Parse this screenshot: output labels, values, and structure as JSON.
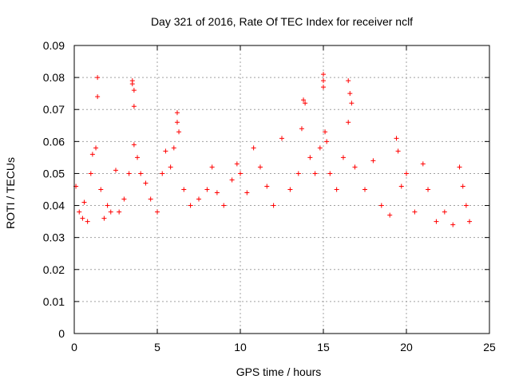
{
  "chart_data": {
    "type": "scatter",
    "title": "Day 321 of 2016, Rate Of TEC Index for receiver nclf",
    "xlabel": "GPS time / hours",
    "ylabel": "ROTI / TECUs",
    "xlim": [
      0,
      25
    ],
    "ylim": [
      0,
      0.09
    ],
    "x_ticks": [
      0,
      5,
      10,
      15,
      20,
      25
    ],
    "y_ticks": [
      0,
      0.01,
      0.02,
      0.03,
      0.04,
      0.05,
      0.06,
      0.07,
      0.08,
      0.09
    ],
    "x_tick_labels": [
      "0",
      "5",
      "10",
      "15",
      "20",
      "25"
    ],
    "y_tick_labels": [
      "0",
      "0.01",
      "0.02",
      "0.03",
      "0.04",
      "0.05",
      "0.06",
      "0.07",
      "0.08",
      "0.09"
    ],
    "grid": true,
    "marker": "+",
    "marker_color": "#ff0000",
    "series": [
      {
        "name": "ROTI",
        "points": [
          [
            0.1,
            0.046
          ],
          [
            0.3,
            0.038
          ],
          [
            0.5,
            0.036
          ],
          [
            0.6,
            0.041
          ],
          [
            0.8,
            0.035
          ],
          [
            1.0,
            0.05
          ],
          [
            1.1,
            0.056
          ],
          [
            1.3,
            0.058
          ],
          [
            1.4,
            0.08
          ],
          [
            1.4,
            0.074
          ],
          [
            1.6,
            0.045
          ],
          [
            1.8,
            0.036
          ],
          [
            2.0,
            0.04
          ],
          [
            2.2,
            0.038
          ],
          [
            2.5,
            0.051
          ],
          [
            2.7,
            0.038
          ],
          [
            3.0,
            0.042
          ],
          [
            3.3,
            0.05
          ],
          [
            3.5,
            0.079
          ],
          [
            3.5,
            0.078
          ],
          [
            3.6,
            0.076
          ],
          [
            3.6,
            0.071
          ],
          [
            3.6,
            0.059
          ],
          [
            3.8,
            0.055
          ],
          [
            4.0,
            0.05
          ],
          [
            4.3,
            0.047
          ],
          [
            4.6,
            0.042
          ],
          [
            5.0,
            0.038
          ],
          [
            5.3,
            0.05
          ],
          [
            5.5,
            0.057
          ],
          [
            5.8,
            0.052
          ],
          [
            6.0,
            0.058
          ],
          [
            6.2,
            0.069
          ],
          [
            6.2,
            0.066
          ],
          [
            6.3,
            0.063
          ],
          [
            6.6,
            0.045
          ],
          [
            7.0,
            0.04
          ],
          [
            7.5,
            0.042
          ],
          [
            8.0,
            0.045
          ],
          [
            8.3,
            0.052
          ],
          [
            8.6,
            0.044
          ],
          [
            9.0,
            0.04
          ],
          [
            9.5,
            0.048
          ],
          [
            9.8,
            0.053
          ],
          [
            10.0,
            0.05
          ],
          [
            10.4,
            0.044
          ],
          [
            10.8,
            0.058
          ],
          [
            11.2,
            0.052
          ],
          [
            11.6,
            0.046
          ],
          [
            12.0,
            0.04
          ],
          [
            12.5,
            0.061
          ],
          [
            13.0,
            0.045
          ],
          [
            13.5,
            0.05
          ],
          [
            13.7,
            0.064
          ],
          [
            13.8,
            0.073
          ],
          [
            13.9,
            0.072
          ],
          [
            14.2,
            0.055
          ],
          [
            14.5,
            0.05
          ],
          [
            14.8,
            0.058
          ],
          [
            15.0,
            0.081
          ],
          [
            15.0,
            0.079
          ],
          [
            15.0,
            0.077
          ],
          [
            15.1,
            0.063
          ],
          [
            15.2,
            0.06
          ],
          [
            15.4,
            0.05
          ],
          [
            15.8,
            0.045
          ],
          [
            16.2,
            0.055
          ],
          [
            16.5,
            0.079
          ],
          [
            16.6,
            0.075
          ],
          [
            16.7,
            0.072
          ],
          [
            16.5,
            0.066
          ],
          [
            16.9,
            0.052
          ],
          [
            17.5,
            0.045
          ],
          [
            18.0,
            0.054
          ],
          [
            18.5,
            0.04
          ],
          [
            19.0,
            0.037
          ],
          [
            19.4,
            0.061
          ],
          [
            19.5,
            0.057
          ],
          [
            19.7,
            0.046
          ],
          [
            20.0,
            0.05
          ],
          [
            20.5,
            0.038
          ],
          [
            21.0,
            0.053
          ],
          [
            21.3,
            0.045
          ],
          [
            21.8,
            0.035
          ],
          [
            22.3,
            0.038
          ],
          [
            22.8,
            0.034
          ],
          [
            23.2,
            0.052
          ],
          [
            23.4,
            0.046
          ],
          [
            23.6,
            0.04
          ],
          [
            23.8,
            0.035
          ]
        ]
      }
    ]
  }
}
